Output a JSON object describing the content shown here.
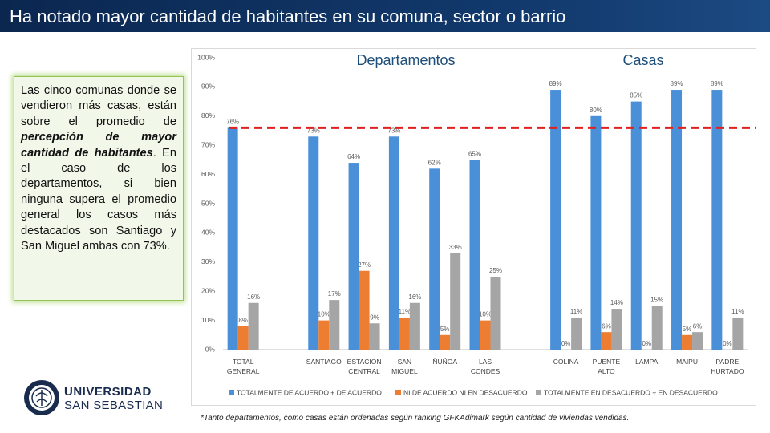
{
  "slide_title": "Ha notado mayor cantidad de habitantes en su comuna, sector o barrio",
  "callout": [
    {
      "text": "Las cinco comunas donde se vendieron más casas, están sobre el promedio de ",
      "bold": false
    },
    {
      "text": "percepción de mayor cantidad de habitantes",
      "bold": true
    },
    {
      "text": ". En el caso de los departamentos, si bien ninguna supera el promedio general los casos más destacados son Santiago y San Miguel ambas con 73%.",
      "bold": false
    }
  ],
  "footnote": "*Tanto departamentos, como casas están ordenadas según ranking GFKAdimark según cantidad de viviendas vendidas.",
  "logo": {
    "line1": "UNIVERSIDAD",
    "line2": "SAN SEBASTIAN"
  },
  "chart_data": {
    "type": "bar",
    "annotations": [
      "Departamentos",
      "Casas"
    ],
    "categories": [
      "TOTAL GENERAL",
      null,
      "SANTIAGO",
      "ESTACION CENTRAL",
      "SAN MIGUEL",
      "ÑUÑOA",
      "LAS CONDES",
      null,
      "COLINA",
      "PUENTE ALTO",
      "LAMPA",
      "MAIPU",
      "PADRE HURTADO"
    ],
    "series": [
      {
        "name": "TOTALMENTE DE ACUERDO + DE ACUERDO",
        "color": "#4a90d9",
        "values": [
          76,
          null,
          73,
          64,
          73,
          62,
          65,
          null,
          89,
          80,
          85,
          89,
          89
        ],
        "value_labels": [
          "76%",
          null,
          "73%",
          "64%",
          "73%",
          "62%",
          "65%",
          null,
          "89%",
          "80%",
          "85%",
          "89%",
          "89%"
        ]
      },
      {
        "name": "NI DE ACUERDO NI EN DESACUERDO",
        "color": "#ed7d31",
        "values": [
          8,
          null,
          10,
          27,
          11,
          5,
          10,
          null,
          0,
          6,
          0,
          5,
          0
        ],
        "value_labels": [
          "8%",
          null,
          "10%",
          "27%",
          "11%",
          "5%",
          "10%",
          null,
          "0%",
          "6%",
          "0%",
          "5%",
          "0%"
        ]
      },
      {
        "name": "TOTALMENTE EN DESACUERDO + EN DESACUERDO",
        "color": "#a5a5a5",
        "values": [
          16,
          null,
          17,
          9,
          16,
          33,
          25,
          null,
          11,
          14,
          15,
          6,
          11
        ],
        "value_labels": [
          "16%",
          null,
          "17%",
          "9%",
          "16%",
          "33%",
          "25%",
          null,
          "11%",
          "14%",
          "15%",
          "6%",
          "11%"
        ]
      }
    ],
    "ylim": [
      0,
      100
    ],
    "yticks": [
      {
        "value": 0,
        "label": "0%"
      },
      {
        "value": 10,
        "label": "10%"
      },
      {
        "value": 20,
        "label": "20%"
      },
      {
        "value": 30,
        "label": "30%"
      },
      {
        "value": 40,
        "label": "40%"
      },
      {
        "value": 50,
        "label": "50%"
      },
      {
        "value": 60,
        "label": "60%"
      },
      {
        "value": 70,
        "label": "70%"
      },
      {
        "value": 80,
        "label": "80%"
      },
      {
        "value": 90,
        "label": "90%"
      },
      {
        "value": 100,
        "label": "100%"
      }
    ],
    "grid": false,
    "legend": "bottom",
    "reference_line": {
      "value": 76,
      "color": "#e0201f"
    }
  }
}
